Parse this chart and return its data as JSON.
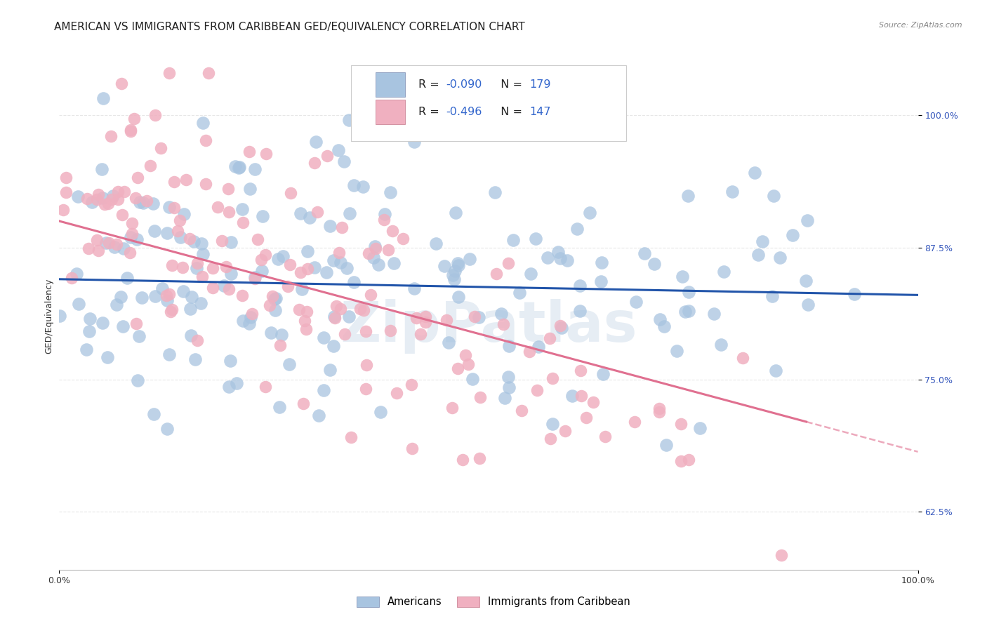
{
  "title": "AMERICAN VS IMMIGRANTS FROM CARIBBEAN GED/EQUIVALENCY CORRELATION CHART",
  "source": "Source: ZipAtlas.com",
  "ylabel": "GED/Equivalency",
  "yticks": [
    62.5,
    75.0,
    87.5,
    100.0
  ],
  "ytick_labels": [
    "62.5%",
    "75.0%",
    "87.5%",
    "100.0%"
  ],
  "xlim": [
    0.0,
    1.0
  ],
  "ylim": [
    57.0,
    105.0
  ],
  "watermark": "ZipPatlas",
  "blue_R": -0.09,
  "blue_N": 179,
  "pink_R": -0.496,
  "pink_N": 147,
  "blue_color": "#a8c4e0",
  "pink_color": "#f0b0c0",
  "blue_line_color": "#2255aa",
  "pink_line_color": "#e07090",
  "background_color": "#ffffff",
  "grid_color": "#dddddd",
  "title_fontsize": 11,
  "axis_label_fontsize": 9,
  "tick_fontsize": 9,
  "legend_fontsize": 11,
  "seed": 99,
  "blue_line_y0": 84.5,
  "blue_line_y1": 83.0,
  "pink_line_y0": 90.0,
  "pink_line_y1": 71.0,
  "pink_line_x1": 0.87
}
